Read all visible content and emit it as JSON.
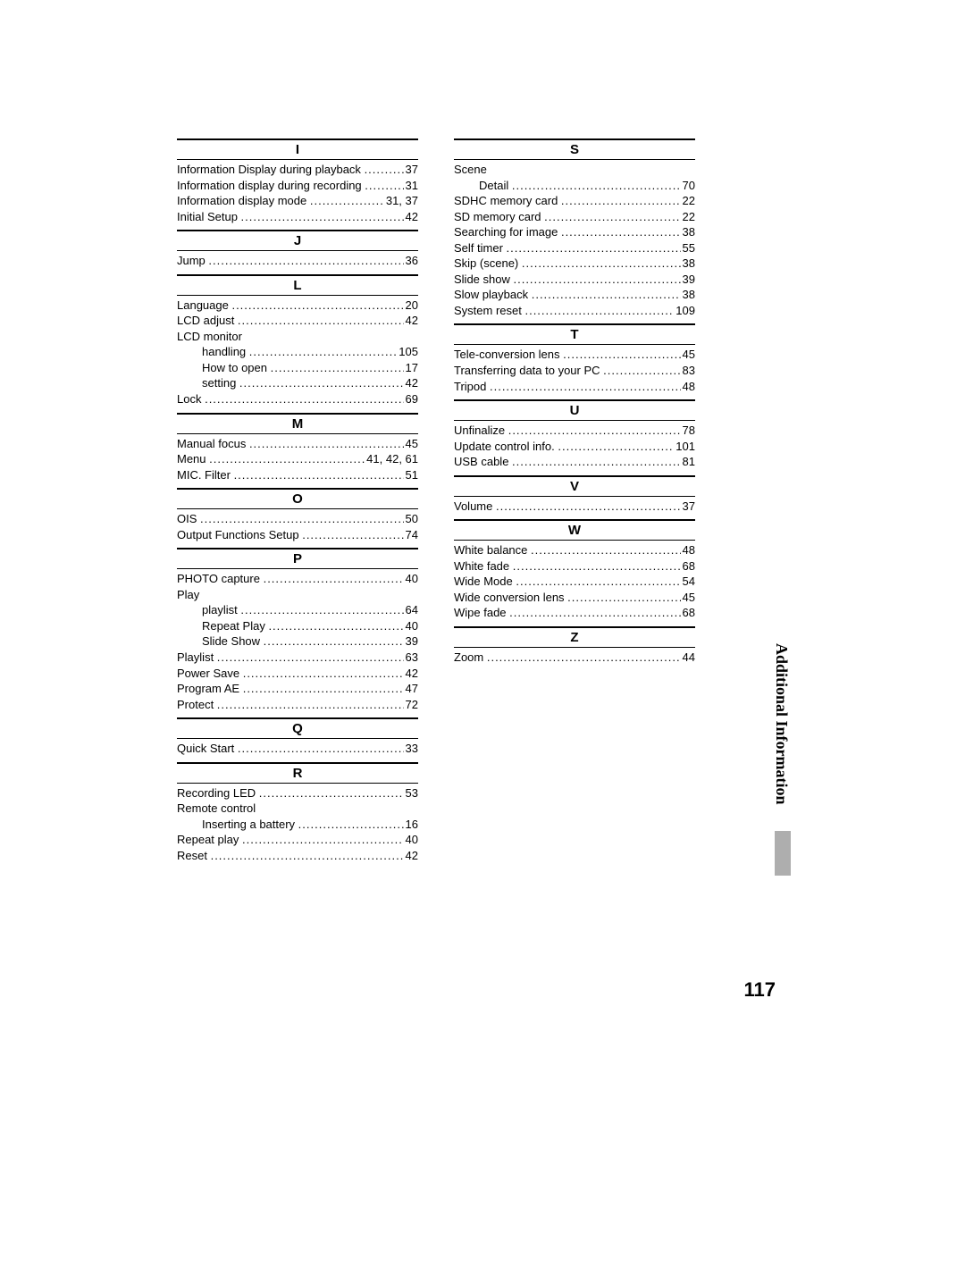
{
  "pageNumber": "117",
  "sideTab": "Additional Information",
  "columns": [
    {
      "sections": [
        {
          "letter": "I",
          "entries": [
            {
              "label": "Information Display during playback",
              "page": "37"
            },
            {
              "label": "Information display during recording",
              "page": "31"
            },
            {
              "label": "Information display mode",
              "page": "31, 37"
            },
            {
              "label": "Initial Setup",
              "page": "42"
            }
          ]
        },
        {
          "letter": "J",
          "entries": [
            {
              "label": "Jump",
              "page": "36"
            }
          ]
        },
        {
          "letter": "L",
          "entries": [
            {
              "label": "Language",
              "page": "20"
            },
            {
              "label": "LCD adjust",
              "page": "42"
            },
            {
              "label": "LCD monitor",
              "page": "",
              "nopages": true
            },
            {
              "label": "handling",
              "page": "105",
              "sub": true
            },
            {
              "label": "How to open",
              "page": "17",
              "sub": true
            },
            {
              "label": "setting",
              "page": "42",
              "sub": true
            },
            {
              "label": "Lock",
              "page": "69"
            }
          ]
        },
        {
          "letter": "M",
          "entries": [
            {
              "label": "Manual focus",
              "page": "45"
            },
            {
              "label": "Menu",
              "page": "41, 42, 61"
            },
            {
              "label": "MIC. Filter",
              "page": "51"
            }
          ]
        },
        {
          "letter": "O",
          "entries": [
            {
              "label": "OIS",
              "page": "50"
            },
            {
              "label": "Output Functions Setup",
              "page": "74"
            }
          ]
        },
        {
          "letter": "P",
          "entries": [
            {
              "label": "PHOTO capture",
              "page": "40"
            },
            {
              "label": "Play",
              "page": "",
              "nopages": true
            },
            {
              "label": "playlist",
              "page": "64",
              "sub": true
            },
            {
              "label": "Repeat Play",
              "page": "40",
              "sub": true
            },
            {
              "label": "Slide Show",
              "page": "39",
              "sub": true
            },
            {
              "label": "Playlist",
              "page": "63"
            },
            {
              "label": "Power Save",
              "page": "42"
            },
            {
              "label": "Program AE",
              "page": "47"
            },
            {
              "label": "Protect",
              "page": "72"
            }
          ]
        },
        {
          "letter": "Q",
          "entries": [
            {
              "label": "Quick Start",
              "page": "33"
            }
          ]
        },
        {
          "letter": "R",
          "entries": [
            {
              "label": "Recording LED",
              "page": "53"
            },
            {
              "label": "Remote control",
              "page": "",
              "nopages": true
            },
            {
              "label": "Inserting a battery",
              "page": "16",
              "sub": true
            },
            {
              "label": "Repeat play",
              "page": "40"
            },
            {
              "label": "Reset",
              "page": "42"
            }
          ]
        }
      ]
    },
    {
      "sections": [
        {
          "letter": "S",
          "entries": [
            {
              "label": "Scene",
              "page": "",
              "nopages": true
            },
            {
              "label": "Detail",
              "page": "70",
              "sub": true
            },
            {
              "label": "SDHC memory card",
              "page": "22"
            },
            {
              "label": "SD memory card",
              "page": "22"
            },
            {
              "label": "Searching for image",
              "page": "38"
            },
            {
              "label": "Self timer",
              "page": "55"
            },
            {
              "label": "Skip (scene)",
              "page": "38"
            },
            {
              "label": "Slide show",
              "page": "39"
            },
            {
              "label": "Slow playback",
              "page": "38"
            },
            {
              "label": "System reset",
              "page": "109"
            }
          ]
        },
        {
          "letter": "T",
          "entries": [
            {
              "label": "Tele-conversion lens",
              "page": "45"
            },
            {
              "label": "Transferring data to your PC",
              "page": "83"
            },
            {
              "label": "Tripod",
              "page": "48"
            }
          ]
        },
        {
          "letter": "U",
          "entries": [
            {
              "label": "Unfinalize",
              "page": "78"
            },
            {
              "label": "Update control info.",
              "page": "101"
            },
            {
              "label": "USB cable",
              "page": "81"
            }
          ]
        },
        {
          "letter": "V",
          "entries": [
            {
              "label": "Volume",
              "page": "37"
            }
          ]
        },
        {
          "letter": "W",
          "entries": [
            {
              "label": "White balance",
              "page": "48"
            },
            {
              "label": "White fade",
              "page": "68"
            },
            {
              "label": "Wide Mode",
              "page": "54"
            },
            {
              "label": "Wide conversion lens",
              "page": "45"
            },
            {
              "label": "Wipe fade",
              "page": "68"
            }
          ]
        },
        {
          "letter": "Z",
          "entries": [
            {
              "label": "Zoom",
              "page": "44"
            }
          ]
        }
      ]
    }
  ]
}
